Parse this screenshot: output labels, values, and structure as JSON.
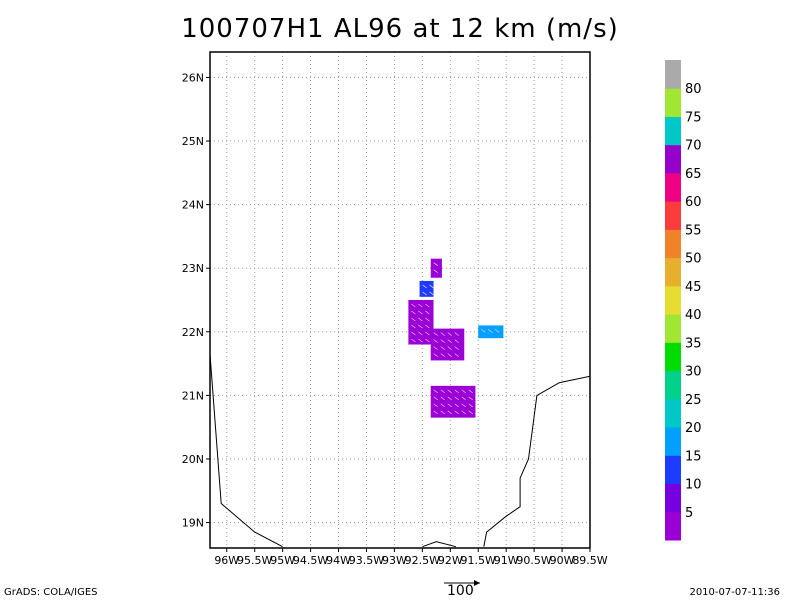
{
  "title": "100707H1 AL96 at 12 km (m/s)",
  "footer": {
    "left": "GrADS: COLA/IGES",
    "right": "2010-07-07-11:36",
    "reference_vector_label": "100"
  },
  "colorbar": {
    "labels": [
      "5",
      "10",
      "15",
      "20",
      "25",
      "30",
      "35",
      "40",
      "45",
      "50",
      "55",
      "60",
      "65",
      "70",
      "75",
      "80"
    ],
    "colors": [
      "#9a00d6",
      "#7700e0",
      "#1e3cff",
      "#00a0ff",
      "#00c8c8",
      "#00d28c",
      "#00dc00",
      "#a0e632",
      "#e6dc32",
      "#e6af2d",
      "#f08228",
      "#fa3c3c",
      "#f00082",
      "#9600c8",
      "#00c8c8",
      "#a0e632",
      "#aaaaaa"
    ]
  },
  "chart_data": {
    "type": "heatmap",
    "title": "100707H1 AL96 at 12 km (m/s)",
    "xlabel": "",
    "ylabel": "",
    "xlim": [
      -96.3,
      -89.5
    ],
    "ylim": [
      18.6,
      26.4
    ],
    "x_ticks": [
      "96W",
      "95.5W",
      "95W",
      "94.5W",
      "94W",
      "93.5W",
      "93W",
      "92.5W",
      "92W",
      "91.5W",
      "91W",
      "90.5W",
      "90W",
      "89.5W"
    ],
    "x_tick_values": [
      -96,
      -95.5,
      -95,
      -94.5,
      -94,
      -93.5,
      -93,
      -92.5,
      -92,
      -91.5,
      -91,
      -90.5,
      -90,
      -89.5
    ],
    "y_ticks": [
      "19N",
      "20N",
      "21N",
      "22N",
      "23N",
      "24N",
      "25N",
      "26N"
    ],
    "y_tick_values": [
      19,
      20,
      21,
      22,
      23,
      24,
      25,
      26
    ],
    "grid": true,
    "regions": [
      {
        "name": "north cluster",
        "value_class": "5-10",
        "lon": [
          -92.35,
          -92.15
        ],
        "lat": [
          22.85,
          23.15
        ]
      },
      {
        "name": "blue patch",
        "value_class": "10-15",
        "lon": [
          -92.55,
          -92.3
        ],
        "lat": [
          22.55,
          22.8
        ]
      },
      {
        "name": "west cluster",
        "value_class": "5-10",
        "lon": [
          -92.75,
          -92.3
        ],
        "lat": [
          21.8,
          22.5
        ]
      },
      {
        "name": "center cluster",
        "value_class": "5-10",
        "lon": [
          -92.35,
          -91.75
        ],
        "lat": [
          21.55,
          22.05
        ]
      },
      {
        "name": "east patch",
        "value_class": "15-25",
        "lon": [
          -91.5,
          -91.05
        ],
        "lat": [
          21.9,
          22.1
        ]
      },
      {
        "name": "south cluster",
        "value_class": "5-10",
        "lon": [
          -92.35,
          -91.55
        ],
        "lat": [
          20.65,
          21.15
        ]
      }
    ],
    "coastline": [
      [
        [
          -96.3,
          21.65
        ],
        [
          -96.1,
          19.3
        ],
        [
          -95.5,
          18.85
        ],
        [
          -95.0,
          18.62
        ]
      ],
      [
        [
          -92.5,
          18.62
        ],
        [
          -92.25,
          18.7
        ],
        [
          -91.9,
          18.62
        ]
      ],
      [
        [
          -91.4,
          18.62
        ],
        [
          -91.35,
          18.85
        ],
        [
          -91.0,
          19.1
        ],
        [
          -90.75,
          19.25
        ],
        [
          -90.75,
          19.7
        ],
        [
          -90.6,
          20.0
        ],
        [
          -90.45,
          21.0
        ],
        [
          -90.05,
          21.2
        ],
        [
          -89.5,
          21.3
        ]
      ]
    ]
  }
}
